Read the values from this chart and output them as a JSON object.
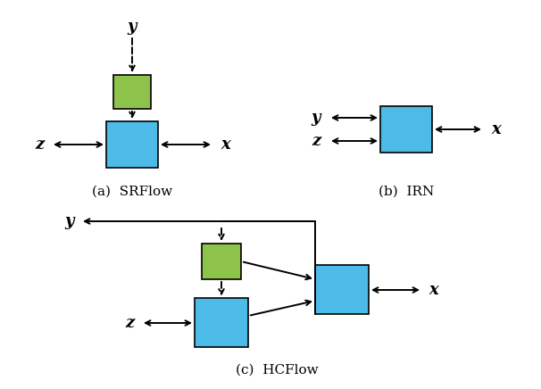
{
  "blue_color": "#4DBBE8",
  "green_color": "#8DC34A",
  "arrow_color": "#000000",
  "text_color": "#000000",
  "bg_color": "#FFFFFF",
  "caption_a": "(a)  SRFlow",
  "caption_b": "(b)  IRN",
  "caption_c": "(c)  HCFlow",
  "fig_width": 6.06,
  "fig_height": 4.36,
  "dpi": 100
}
